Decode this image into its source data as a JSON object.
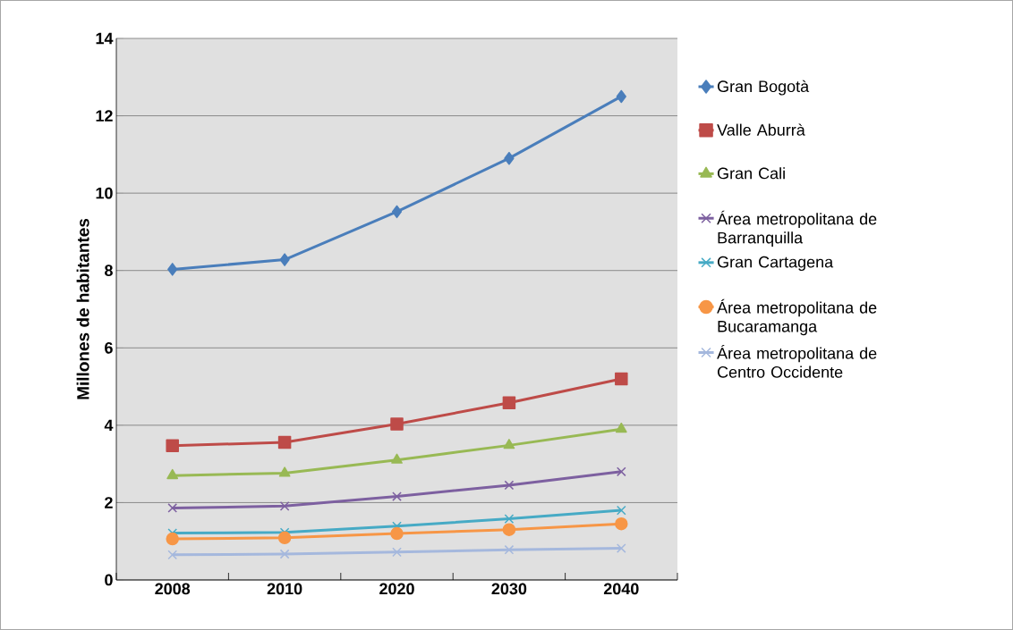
{
  "chart_data": {
    "type": "line",
    "ylabel": "Millones de habitantes",
    "categories": [
      "2008",
      "2010",
      "2020",
      "2030",
      "2040"
    ],
    "ylim": [
      0,
      14
    ],
    "yticks": [
      0,
      2,
      4,
      6,
      8,
      10,
      12,
      14
    ],
    "grid": "y",
    "legend": "right",
    "line_style": "solid",
    "series": [
      {
        "name": "Gran Bogotà",
        "color": "#4a7ebb",
        "marker": "diamond",
        "values": [
          8.03,
          8.28,
          9.52,
          10.9,
          12.5
        ]
      },
      {
        "name": "Valle Aburrà",
        "color": "#be4b48",
        "marker": "square",
        "values": [
          3.47,
          3.56,
          4.03,
          4.58,
          5.2
        ]
      },
      {
        "name": "Gran Cali",
        "color": "#98b954",
        "marker": "triangle",
        "values": [
          2.7,
          2.76,
          3.1,
          3.48,
          3.9
        ]
      },
      {
        "name": "Área metropolitana de Barranquilla",
        "color": "#7d60a0",
        "marker": "cross",
        "values": [
          1.86,
          1.91,
          2.16,
          2.45,
          2.8
        ]
      },
      {
        "name": "Gran Cartagena",
        "color": "#46aac5",
        "marker": "cross",
        "values": [
          1.21,
          1.23,
          1.39,
          1.58,
          1.8
        ]
      },
      {
        "name": "Área metropolitana de Bucaramanga",
        "color": "#f79646",
        "marker": "circle",
        "values": [
          1.06,
          1.09,
          1.2,
          1.3,
          1.45
        ]
      },
      {
        "name": "Área metropolitana de Centro Occidente",
        "color": "#a5b8dd",
        "marker": "cross",
        "values": [
          0.65,
          0.67,
          0.72,
          0.78,
          0.82
        ]
      }
    ]
  }
}
